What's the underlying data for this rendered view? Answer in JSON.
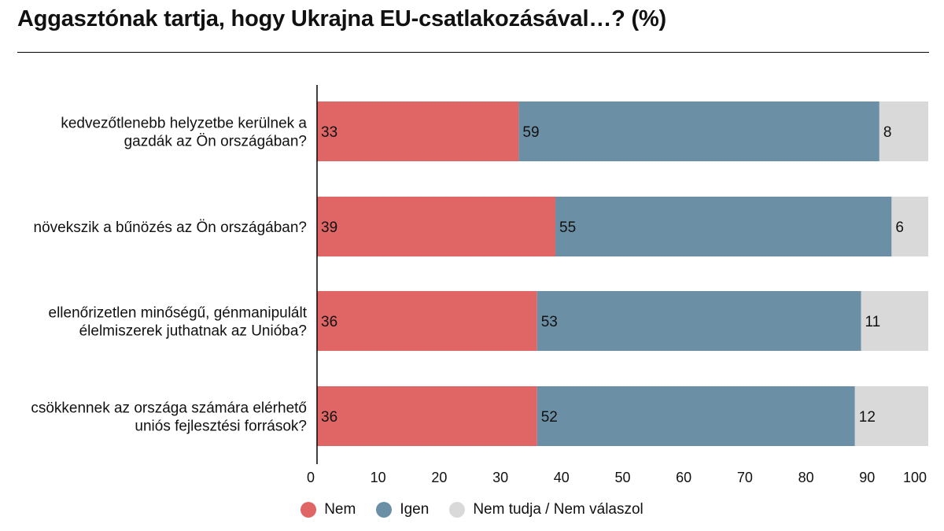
{
  "title": "Aggasztónak tartja, hogy Ukrajna EU-csatlakozásával…? (%)",
  "chart_data": {
    "type": "bar",
    "orientation": "horizontal",
    "stacked": true,
    "categories": [
      [
        "kedvezőtlenebb helyzetbe kerülnek a",
        "gazdák az Ön országában?"
      ],
      [
        "növekszik a bűnözés az Ön országában?"
      ],
      [
        "ellenőrizetlen minőségű, génmanipulált",
        "élelmiszerek juthatnak az Unióba?"
      ],
      [
        "csökkennek az országa számára elérhető",
        "uniós fejlesztési források?"
      ]
    ],
    "series": [
      {
        "name": "Nem",
        "color": "#e06666",
        "values": [
          33,
          39,
          36,
          36
        ]
      },
      {
        "name": "Igen",
        "color": "#6b8fa4",
        "values": [
          59,
          55,
          53,
          52
        ]
      },
      {
        "name": "Nem tudja / Nem válaszol",
        "color": "#d9d9d9",
        "values": [
          8,
          6,
          11,
          12
        ]
      }
    ],
    "xlim": [
      0,
      100
    ],
    "xticks": [
      "0",
      "10",
      "20",
      "30",
      "40",
      "50",
      "60",
      "70",
      "80",
      "90",
      "100"
    ],
    "xlabel": "",
    "ylabel": "",
    "legend": "bottom"
  }
}
